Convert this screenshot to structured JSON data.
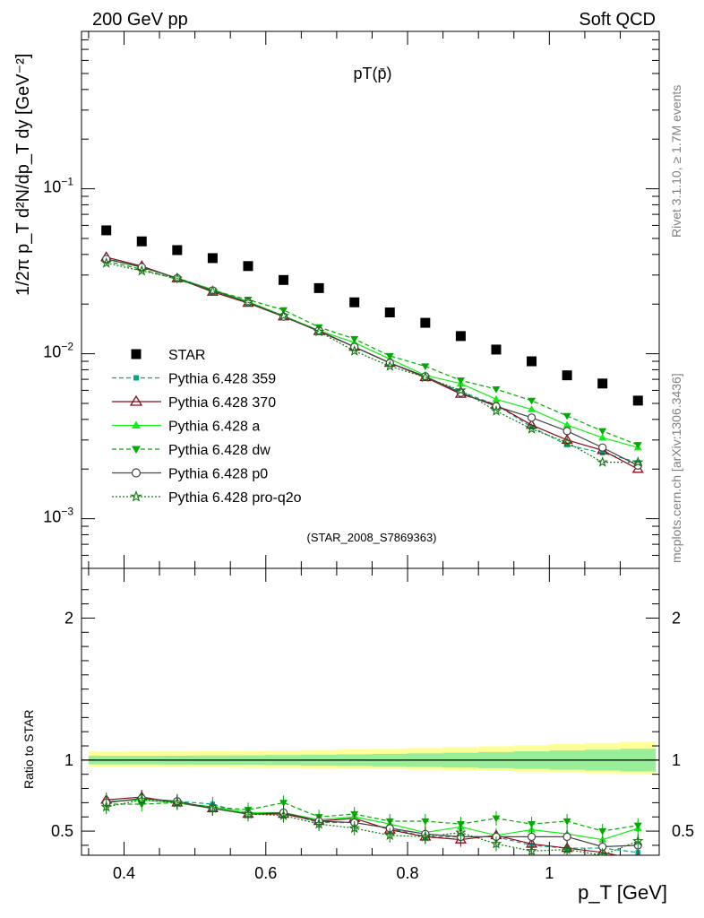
{
  "header": {
    "left": "200 GeV pp",
    "right": "Soft QCD"
  },
  "side_labels": {
    "rivet": "Rivet 3.1.10, ≥ 1.7M events",
    "mcplots": "mcplots.cern.ch [arXiv:1306.3436]"
  },
  "chart_data": [
    {
      "type": "scatter",
      "title": "pT(p̄)",
      "analysis": "(STAR_2008_S7869363)",
      "ylabel": "1/2π p_T d²N/dp_T dy [GeV⁻²]",
      "xlabel": "p_T [GeV]",
      "yscale": "log",
      "xlim": [
        0.34,
        1.155
      ],
      "ylim": [
        0.0005,
        0.9
      ],
      "y_ticks": [
        "10^{-3}",
        "10^{-2}",
        "10^{-1}"
      ],
      "x": [
        0.375,
        0.425,
        0.475,
        0.525,
        0.575,
        0.625,
        0.675,
        0.725,
        0.775,
        0.825,
        0.875,
        0.925,
        0.975,
        1.025,
        1.075,
        1.125
      ],
      "legend_position": "lower-left",
      "series": [
        {
          "name": "STAR",
          "color": "#000000",
          "marker": "square",
          "line": "none",
          "values": [
            0.056,
            0.048,
            0.0425,
            0.038,
            0.034,
            0.028,
            0.025,
            0.0205,
            0.0178,
            0.0154,
            0.0128,
            0.0106,
            0.009,
            0.0074,
            0.0066,
            0.0052
          ]
        },
        {
          "name": "Pythia 6.428 359",
          "color": "#00aa88",
          "marker": "small-square",
          "line": "dashed",
          "values": [
            0.0378,
            0.0335,
            0.0288,
            0.0245,
            0.0206,
            0.0168,
            0.0137,
            0.011,
            0.0088,
            0.0072,
            0.0059,
            0.0049,
            0.0036,
            0.0028,
            0.0025,
            0.0022
          ]
        },
        {
          "name": "Pythia 6.428 370",
          "color": "#8b0a1e",
          "marker": "open-triangle",
          "line": "solid",
          "values": [
            0.0385,
            0.034,
            0.0286,
            0.0237,
            0.0203,
            0.0168,
            0.0137,
            0.011,
            0.0088,
            0.0072,
            0.0057,
            0.0049,
            0.0037,
            0.003,
            0.0026,
            0.002
          ]
        },
        {
          "name": "Pythia 6.428 a",
          "color": "#11ee11",
          "marker": "triangle",
          "line": "solid",
          "values": [
            0.0375,
            0.0335,
            0.0287,
            0.0245,
            0.0207,
            0.017,
            0.0138,
            0.0117,
            0.0093,
            0.0074,
            0.0066,
            0.0053,
            0.0046,
            0.0037,
            0.0031,
            0.0027
          ]
        },
        {
          "name": "Pythia 6.428 dw",
          "color": "#00aa00",
          "marker": "inverted-triangle",
          "line": "dashed",
          "values": [
            0.0365,
            0.0325,
            0.0282,
            0.0242,
            0.0213,
            0.0184,
            0.0145,
            0.0123,
            0.0097,
            0.0084,
            0.0069,
            0.0061,
            0.0052,
            0.0042,
            0.0034,
            0.0028
          ]
        },
        {
          "name": "Pythia 6.428 p0",
          "color": "#444444",
          "marker": "open-circle",
          "line": "solid",
          "values": [
            0.0375,
            0.0335,
            0.0287,
            0.0242,
            0.0205,
            0.0168,
            0.0138,
            0.011,
            0.0088,
            0.0073,
            0.0058,
            0.0048,
            0.0041,
            0.0034,
            0.0027,
            0.0021
          ]
        },
        {
          "name": "Pythia 6.428 pro-q2o",
          "color": "#117711",
          "marker": "open-star",
          "line": "dotted",
          "values": [
            0.0355,
            0.0318,
            0.0286,
            0.024,
            0.0205,
            0.017,
            0.0136,
            0.0104,
            0.0084,
            0.0072,
            0.006,
            0.0045,
            0.0035,
            0.0029,
            0.0022,
            0.0022
          ]
        }
      ]
    },
    {
      "type": "scatter",
      "ylabel": "Ratio to STAR",
      "xlabel": "p_T [GeV]",
      "xlim": [
        0.34,
        1.155
      ],
      "ylim": [
        0.33,
        2.35
      ],
      "y_ticks": [
        "0.5",
        "1",
        "2"
      ],
      "x_ticks": [
        "0.4",
        "0.6",
        "0.8",
        "1"
      ],
      "reference_band": {
        "inner": [
          0.97,
          1.03,
          0.95,
          1.05,
          0.92,
          1.08
        ],
        "outer": [
          0.95,
          1.06,
          0.93,
          1.1,
          0.9,
          1.13
        ]
      },
      "x": [
        0.375,
        0.425,
        0.475,
        0.525,
        0.575,
        0.625,
        0.675,
        0.725,
        0.775,
        0.825,
        0.875,
        0.925,
        0.975,
        1.025,
        1.075,
        1.125
      ],
      "series": [
        {
          "name": "Pythia 6.428 359",
          "values": [
            0.7,
            0.73,
            0.71,
            0.69,
            0.62,
            0.63,
            0.56,
            0.56,
            0.52,
            0.46,
            0.46,
            0.46,
            0.4,
            0.38,
            0.38,
            0.35
          ]
        },
        {
          "name": "Pythia 6.428 370",
          "values": [
            0.72,
            0.74,
            0.7,
            0.66,
            0.62,
            0.62,
            0.57,
            0.59,
            0.51,
            0.46,
            0.44,
            0.47,
            0.41,
            0.38,
            0.35,
            0.3
          ]
        },
        {
          "name": "Pythia 6.428 a",
          "values": [
            0.71,
            0.72,
            0.7,
            0.67,
            0.63,
            0.63,
            0.58,
            0.6,
            0.55,
            0.49,
            0.53,
            0.47,
            0.51,
            0.48,
            0.44,
            0.52
          ]
        },
        {
          "name": "Pythia 6.428 dw",
          "values": [
            0.69,
            0.69,
            0.7,
            0.67,
            0.65,
            0.7,
            0.6,
            0.62,
            0.57,
            0.57,
            0.55,
            0.59,
            0.55,
            0.57,
            0.5,
            0.54
          ]
        },
        {
          "name": "Pythia 6.428 p0",
          "values": [
            0.7,
            0.73,
            0.71,
            0.66,
            0.62,
            0.63,
            0.57,
            0.56,
            0.52,
            0.48,
            0.46,
            0.46,
            0.46,
            0.46,
            0.39,
            0.4
          ]
        },
        {
          "name": "Pythia 6.428 pro-q2o",
          "values": [
            0.67,
            0.72,
            0.7,
            0.66,
            0.62,
            0.61,
            0.55,
            0.52,
            0.47,
            0.46,
            0.49,
            0.41,
            0.36,
            0.37,
            0.33,
            0.43
          ]
        }
      ]
    }
  ]
}
